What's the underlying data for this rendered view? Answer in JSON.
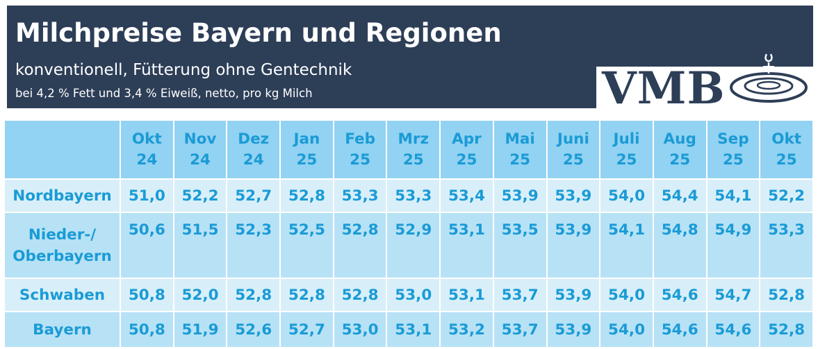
{
  "header": {
    "title": "Milchpreise Bayern und Regionen",
    "subtitle": "konventionell, Fütterung ohne Gentechnik",
    "note": "bei 4,2 % Fett und 3,4 % Eiweiß, netto, pro kg Milch",
    "logo_text": "VMB"
  },
  "colors": {
    "banner": "#2d3e57",
    "header_cell": "#92d2f2",
    "row_light": "#d8eff9",
    "row_mid": "#b7e2f6",
    "text": "#1a9bd6"
  },
  "table": {
    "columns": [
      {
        "month": "Okt",
        "year": "24"
      },
      {
        "month": "Nov",
        "year": "24"
      },
      {
        "month": "Dez",
        "year": "24"
      },
      {
        "month": "Jan",
        "year": "25"
      },
      {
        "month": "Feb",
        "year": "25"
      },
      {
        "month": "Mrz",
        "year": "25"
      },
      {
        "month": "Apr",
        "year": "25"
      },
      {
        "month": "Mai",
        "year": "25"
      },
      {
        "month": "Juni",
        "year": "25"
      },
      {
        "month": "Juli",
        "year": "25"
      },
      {
        "month": "Aug",
        "year": "25"
      },
      {
        "month": "Sep",
        "year": "25"
      },
      {
        "month": "Okt",
        "year": "25"
      }
    ],
    "rows": [
      {
        "label_line1": "Nordbayern",
        "label_line2": "",
        "values": [
          "51,0",
          "52,2",
          "52,7",
          "52,8",
          "53,3",
          "53,3",
          "53,4",
          "53,9",
          "53,9",
          "54,0",
          "54,4",
          "54,1",
          "52,2"
        ]
      },
      {
        "label_line1": "Nieder-/",
        "label_line2": "Oberbayern",
        "values": [
          "50,6",
          "51,5",
          "52,3",
          "52,5",
          "52,8",
          "52,9",
          "53,1",
          "53,5",
          "53,9",
          "54,1",
          "54,8",
          "54,9",
          "53,3"
        ]
      },
      {
        "label_line1": "Schwaben",
        "label_line2": "",
        "values": [
          "50,8",
          "52,0",
          "52,8",
          "52,8",
          "52,8",
          "53,0",
          "53,1",
          "53,7",
          "53,9",
          "54,0",
          "54,6",
          "54,7",
          "52,8"
        ]
      },
      {
        "label_line1": "Bayern",
        "label_line2": "",
        "values": [
          "50,8",
          "51,9",
          "52,6",
          "52,7",
          "53,0",
          "53,1",
          "53,2",
          "53,7",
          "53,9",
          "54,0",
          "54,6",
          "54,6",
          "52,8"
        ]
      }
    ]
  }
}
